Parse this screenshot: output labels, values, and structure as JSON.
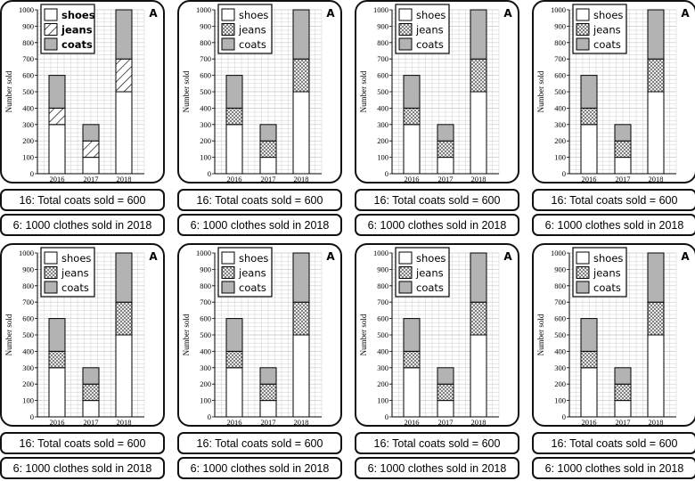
{
  "chart_data": {
    "type": "bar",
    "stacked": true,
    "categories": [
      "2016",
      "2017",
      "2018"
    ],
    "series": [
      {
        "name": "shoes",
        "values": [
          300,
          100,
          500
        ],
        "pattern": "plain",
        "color": "#ffffff"
      },
      {
        "name": "jeans",
        "values": [
          100,
          100,
          200
        ],
        "pattern": "hatch",
        "color": "#ffffff"
      },
      {
        "name": "coats",
        "values": [
          200,
          100,
          300
        ],
        "pattern": "solid",
        "color": "#b3b3b3"
      }
    ],
    "ylabel": "Number sold",
    "ylim": [
      0,
      1000
    ],
    "yticks": [
      0,
      100,
      200,
      300,
      400,
      500,
      600,
      700,
      800,
      900,
      1000
    ],
    "grid": true,
    "legend": "top-left"
  },
  "corner_label": "A",
  "statement_1": "16: Total coats sold = 600",
  "statement_2": "6: 1000 clothes sold in 2018",
  "cards": [
    {
      "jeans_pattern": "diagonal"
    },
    {
      "jeans_pattern": "crosshatch"
    },
    {
      "jeans_pattern": "crosshatch"
    },
    {
      "jeans_pattern": "crosshatch"
    },
    {
      "jeans_pattern": "crosshatch"
    },
    {
      "jeans_pattern": "crosshatch"
    },
    {
      "jeans_pattern": "crosshatch"
    },
    {
      "jeans_pattern": "crosshatch"
    }
  ],
  "colors": {
    "border": "#111111",
    "grid": "#c9c9c9",
    "coats": "#b3b3b3"
  }
}
